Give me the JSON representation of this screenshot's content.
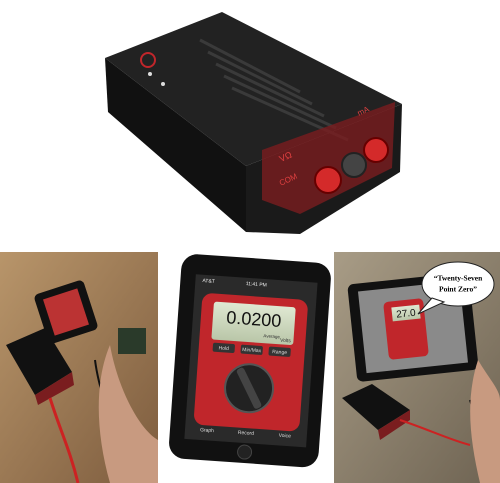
{
  "device": {
    "labels": [
      "VΩ",
      "COM",
      "mA"
    ]
  },
  "phone": {
    "carrier": "AT&T",
    "time": "11:41 PM",
    "reading": "0.0200",
    "mode": "Average",
    "unit": "Volts",
    "buttons": [
      "Hold",
      "Min/Max",
      "Range"
    ],
    "tabs": [
      "Graph",
      "Record",
      "Voice"
    ]
  },
  "tablet": {
    "reading": "27.0",
    "bubble": [
      "“Twenty-Seven",
      "Point Zero”"
    ]
  }
}
